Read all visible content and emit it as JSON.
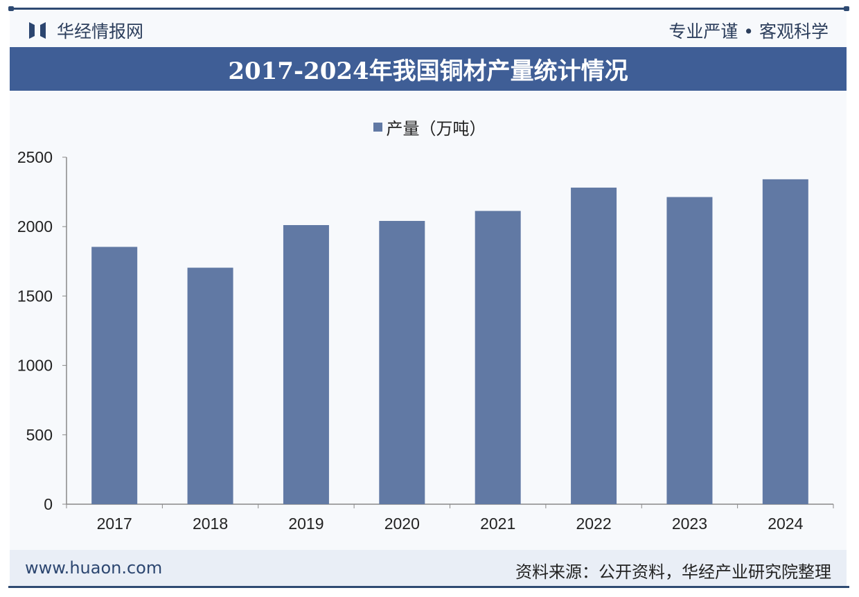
{
  "header": {
    "brand": "华经情报网",
    "slogan": "专业严谨 • 客观科学"
  },
  "footer": {
    "site": "www.huaon.com",
    "source": "资料来源：公开资料，华经产业研究院整理"
  },
  "colors": {
    "bar": "#6179a4",
    "title_bg": "#3f5e96"
  },
  "chart_data": {
    "type": "bar",
    "title": "2017-2024年我国铜材产量统计情况",
    "categories": [
      "2017",
      "2018",
      "2019",
      "2020",
      "2021",
      "2022",
      "2023",
      "2024"
    ],
    "series": [
      {
        "name": "产量（万吨）",
        "values": [
          1854,
          1704,
          2011,
          2041,
          2113,
          2281,
          2213,
          2341
        ]
      }
    ],
    "ylim": [
      0,
      2500
    ],
    "yticks": [
      "0",
      "500",
      "1000",
      "1500",
      "2000",
      "2500"
    ],
    "legend": "top-center",
    "grid": false
  }
}
